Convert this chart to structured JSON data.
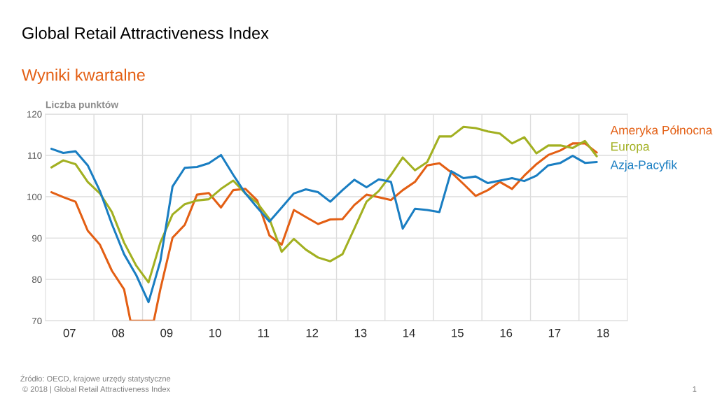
{
  "chart_data": {
    "type": "line",
    "title": "Global Retail Attractiveness Index",
    "subtitle": "Wyniki kwartalne",
    "ylabel": "Liczba punktów",
    "x": [
      "2007-02-15",
      "2007-05-15",
      "2007-08-15",
      "2007-11-15",
      "2008-02-15",
      "2008-05-15",
      "2008-08-15",
      "2008-11-15",
      "2009-02-15",
      "2009-05-15",
      "2009-08-15",
      "2009-11-15",
      "2010-02-15",
      "2010-05-15",
      "2010-08-15",
      "2010-11-15",
      "2011-02-15",
      "2011-05-15",
      "2011-08-15",
      "2011-11-15",
      "2012-02-15",
      "2012-05-15",
      "2012-08-15",
      "2012-11-15",
      "2013-02-15",
      "2013-05-15",
      "2013-08-15",
      "2013-11-15",
      "2014-02-15",
      "2014-05-15",
      "2014-08-15",
      "2014-11-15",
      "2015-02-15",
      "2015-05-15",
      "2015-08-15",
      "2015-11-15",
      "2016-02-15",
      "2016-05-15",
      "2016-08-15",
      "2016-11-15",
      "2017-02-15",
      "2017-05-15",
      "2017-08-15",
      "2017-11-15",
      "2018-02-15",
      "2018-05-15"
    ],
    "series": [
      {
        "name": "Ameryka Północna",
        "color": "#e35f14",
        "x": [
          "2007-02-15",
          "2007-05-15",
          "2007-08-15",
          "2007-11-15",
          "2008-02-15",
          "2008-05-15",
          "2008-08-15",
          "2008-10-02",
          "2009-03-27",
          "2009-05-15",
          "2009-08-15",
          "2009-11-15",
          "2010-02-15",
          "2010-05-15",
          "2010-08-15",
          "2010-11-15",
          "2011-02-15",
          "2011-05-15",
          "2011-08-15",
          "2011-11-15",
          "2012-02-15",
          "2012-05-15",
          "2012-08-15",
          "2012-11-15",
          "2013-02-15",
          "2013-05-15",
          "2013-08-15",
          "2013-11-15",
          "2014-02-15",
          "2014-05-15",
          "2014-08-15",
          "2014-11-15",
          "2015-02-15",
          "2015-05-15",
          "2015-08-15",
          "2015-11-15",
          "2016-02-15",
          "2016-05-15",
          "2016-08-15",
          "2016-11-15",
          "2017-02-15",
          "2017-05-15",
          "2017-08-15",
          "2017-11-15",
          "2018-02-15",
          "2018-05-15"
        ],
        "values": [
          101.1,
          99.9,
          98.8,
          91.8,
          88.4,
          82.1,
          77.6,
          70,
          70,
          77.6,
          90.1,
          93.2,
          100.5,
          100.9,
          97.4,
          101.6,
          101.9,
          99.1,
          90.6,
          88.4,
          96.8,
          95.1,
          93.4,
          94.5,
          94.6,
          98,
          100.5,
          99.9,
          99.2,
          101.6,
          103.6,
          107.6,
          108.1,
          105.9,
          103.1,
          100.2,
          101.6,
          103.6,
          101.9,
          105.1,
          107.9,
          110.1,
          111.2,
          112.9,
          112.9,
          110.7
        ]
      },
      {
        "name": "Europa",
        "color": "#a2b021",
        "values": [
          107.1,
          108.8,
          107.9,
          103.6,
          100.8,
          96.3,
          88.9,
          83.3,
          79.3,
          88.9,
          95.7,
          98.2,
          99.1,
          99.4,
          101.9,
          103.9,
          100.8,
          98.5,
          94.6,
          86.7,
          89.8,
          87.2,
          85.3,
          84.4,
          86.1,
          92.3,
          98.8,
          101.4,
          105.3,
          109.5,
          106.4,
          108.4,
          114.6,
          114.6,
          116.9,
          116.6,
          115.8,
          115.3,
          112.9,
          114.4,
          110.5,
          112.4,
          112.4,
          111.8,
          113.5,
          109.8
        ]
      },
      {
        "name": "Azja-Pacyfik",
        "color": "#1a7ec2",
        "values": [
          111.6,
          110.6,
          111,
          107.6,
          101.4,
          93.4,
          86.1,
          81,
          74.5,
          84.4,
          102.5,
          107,
          107.2,
          108.1,
          110.1,
          105.3,
          100.8,
          97.4,
          94,
          97.4,
          100.8,
          101.8,
          101.1,
          98.8,
          101.6,
          104.1,
          102.3,
          104.2,
          103.6,
          92.3,
          97.1,
          96.8,
          96.3,
          106.2,
          104.5,
          104.9,
          103.3,
          103.9,
          104.5,
          103.8,
          105.1,
          107.6,
          108.2,
          109.9,
          108.2,
          108.4
        ]
      }
    ],
    "xlim": [
      "2007-01-01",
      "2019-01-01"
    ],
    "xticks": [
      {
        "value": "2007-07-01",
        "label": "07"
      },
      {
        "value": "2008-01-01",
        "label": null
      },
      {
        "value": "2008-07-01",
        "label": "08"
      },
      {
        "value": "2009-01-01",
        "label": null
      },
      {
        "value": "2009-07-01",
        "label": "09"
      },
      {
        "value": "2010-01-01",
        "label": null
      },
      {
        "value": "2010-07-01",
        "label": "10"
      },
      {
        "value": "2011-01-01",
        "label": null
      },
      {
        "value": "2011-07-01",
        "label": "11"
      },
      {
        "value": "2012-01-01",
        "label": null
      },
      {
        "value": "2012-07-01",
        "label": "12"
      },
      {
        "value": "2013-01-01",
        "label": null
      },
      {
        "value": "2013-07-01",
        "label": "13"
      },
      {
        "value": "2014-01-01",
        "label": null
      },
      {
        "value": "2014-07-01",
        "label": "14"
      },
      {
        "value": "2015-01-01",
        "label": null
      },
      {
        "value": "2015-07-01",
        "label": "15"
      },
      {
        "value": "2016-01-01",
        "label": null
      },
      {
        "value": "2016-07-01",
        "label": "16"
      },
      {
        "value": "2017-01-01",
        "label": null
      },
      {
        "value": "2017-07-01",
        "label": "17"
      },
      {
        "value": "2018-01-01",
        "label": null
      },
      {
        "value": "2018-07-01",
        "label": "18"
      }
    ],
    "ylim": [
      70,
      120
    ],
    "yticks": [
      70,
      80,
      90,
      100,
      110,
      120
    ],
    "grid": true,
    "line_style": "solid",
    "marker": "none",
    "annotations": [
      "Źródło: OECD, krajowe urzędy statystyczne",
      "© 2018 | Global Retail Attractiveness Index",
      "1"
    ]
  }
}
